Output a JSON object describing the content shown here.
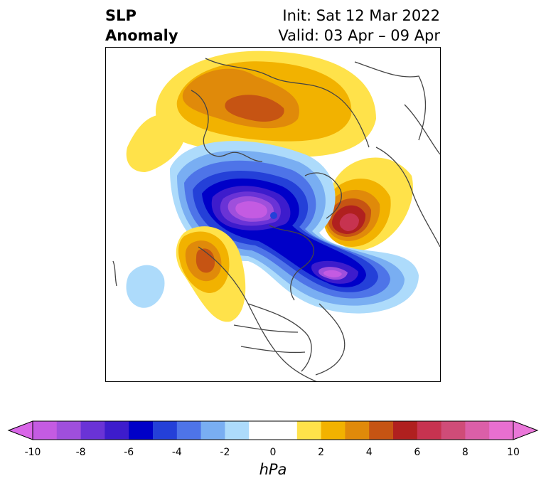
{
  "title": {
    "left_line1": "SLP",
    "left_line2": "Anomaly",
    "init": "Init: Sat 12 Mar 2022",
    "valid": "Valid: 03 Apr – 09 Apr"
  },
  "colorbar": {
    "unit": "hPa",
    "ticks": [
      "-10",
      "-8",
      "-6",
      "-4",
      "-2",
      "0",
      "2",
      "4",
      "6",
      "8",
      "10"
    ],
    "under_color": "#d966e8",
    "over_color": "#ea77d9",
    "colors": [
      "#c45be2",
      "#9f4fdc",
      "#6a33d6",
      "#3d1ccc",
      "#0000c8",
      "#2440d8",
      "#4e74e8",
      "#79aef2",
      "#addbfb",
      "#ffffff",
      "#ffffff",
      "#ffe24a",
      "#f2b200",
      "#e08a0a",
      "#c65413",
      "#b0201f",
      "#c73350",
      "#cf4c78",
      "#db5fa8",
      "#e86fd0"
    ]
  },
  "map": {
    "projection": "north-polar",
    "field": "sea level pressure anomaly",
    "coastline_color": "#444444",
    "features": [
      {
        "name": "positive anomaly over Alaska / Chukotka",
        "sign": "positive"
      },
      {
        "name": "negative anomaly over Canadian Arctic / Greenland",
        "sign": "negative"
      },
      {
        "name": "negative anomaly over Scandinavia / Barents",
        "sign": "negative"
      },
      {
        "name": "positive anomaly over North Atlantic / Iceland",
        "sign": "positive"
      },
      {
        "name": "positive anomaly over Siberia",
        "sign": "positive"
      },
      {
        "name": "positive anomaly over Scotland / North Sea",
        "sign": "positive"
      },
      {
        "name": "negative anomaly over North Pacific",
        "sign": "negative"
      }
    ]
  }
}
